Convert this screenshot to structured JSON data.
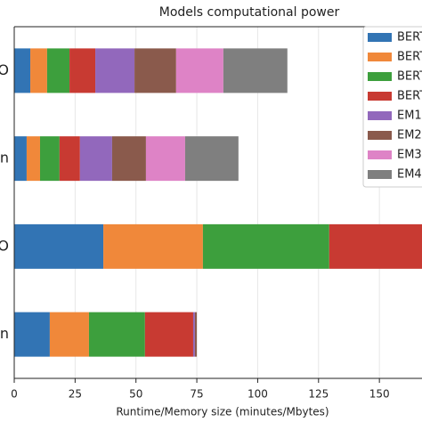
{
  "chart_data": {
    "type": "stacked_barh",
    "title": "Models computational power",
    "x_label": "Runtime/Memory size (minutes/Mbytes)",
    "categories": [
      "O",
      "n",
      "O",
      "n"
    ],
    "category_colors": [
      "#3a76c4",
      "#3a76c4",
      "#b22222",
      "#b22222"
    ],
    "series": [
      {
        "name": "BERT",
        "color": "#3274b4",
        "values": [
          6.6,
          5.1,
          36.6,
          14.6
        ]
      },
      {
        "name": "BERT",
        "color": "#f0883a",
        "values": [
          6.9,
          5.5,
          40.9,
          16.1
        ]
      },
      {
        "name": "BERT",
        "color": "#3d9f3d",
        "values": [
          9.2,
          8.0,
          51.9,
          23.0
        ]
      },
      {
        "name": "BERT",
        "color": "#c83a32",
        "values": [
          10.6,
          8.4,
          40,
          19.8
        ]
      },
      {
        "name": "EM1",
        "color": "#9268bc",
        "values": [
          16.1,
          13.2,
          null,
          0.7
        ]
      },
      {
        "name": "EM2",
        "color": "#8a5a4c",
        "values": [
          17.1,
          13.9,
          null,
          0.8
        ]
      },
      {
        "name": "EM3",
        "color": "#de83c6",
        "values": [
          19.4,
          16.1,
          null,
          null
        ]
      },
      {
        "name": "EM4",
        "color": "#7f7f7f",
        "values": [
          26.3,
          21.9,
          null,
          null
        ]
      }
    ],
    "xlim": [
      0,
      167.5
    ],
    "xticks": [
      0,
      25,
      50,
      75,
      100,
      125,
      150
    ],
    "grid": true
  }
}
